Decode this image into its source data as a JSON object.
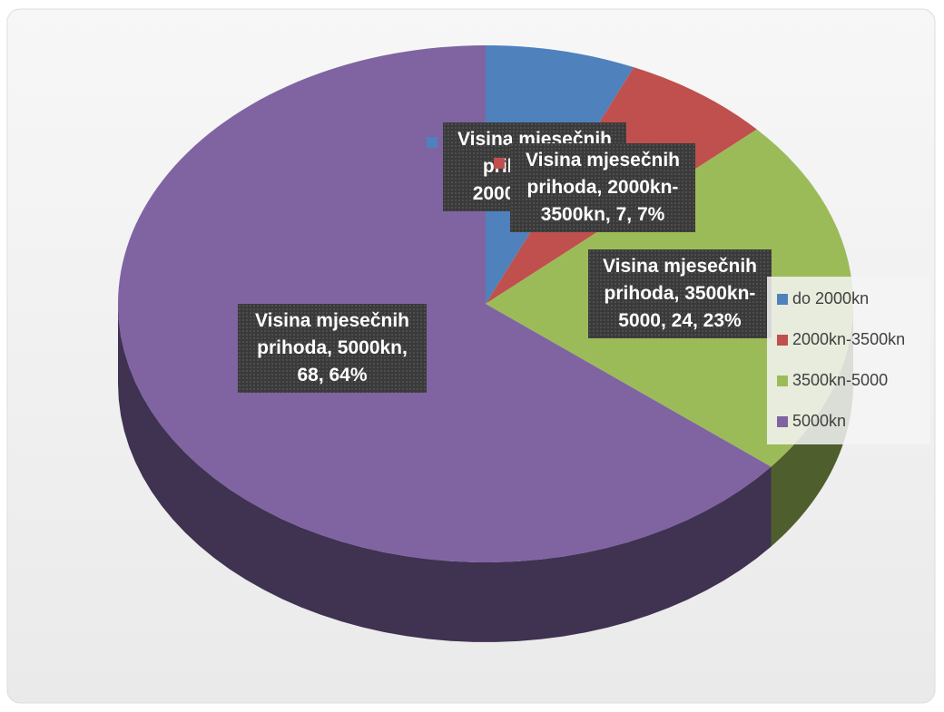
{
  "chart_data": {
    "type": "pie",
    "series_name": "Visina mjesečnih prihoda",
    "categories": [
      "do 2000kn",
      "2000kn-3500kn",
      "3500kn-5000",
      "5000kn"
    ],
    "values": [
      7,
      7,
      24,
      68
    ],
    "value_labels": [
      "Visina mjesečnih prihoda, do 2000kn, 7, 7%",
      "Visina mjesečnih prihoda, 2000kn-3500kn, 7, 7%",
      "Visina mjesečnih prihoda, 3500kn-5000, 24, 23%",
      "Visina mjesečnih prihoda, 5000kn, 68, 64%"
    ],
    "colors": [
      "#4f81bd",
      "#c0504d",
      "#9bbb59",
      "#8064a2"
    ],
    "legend": "right"
  }
}
